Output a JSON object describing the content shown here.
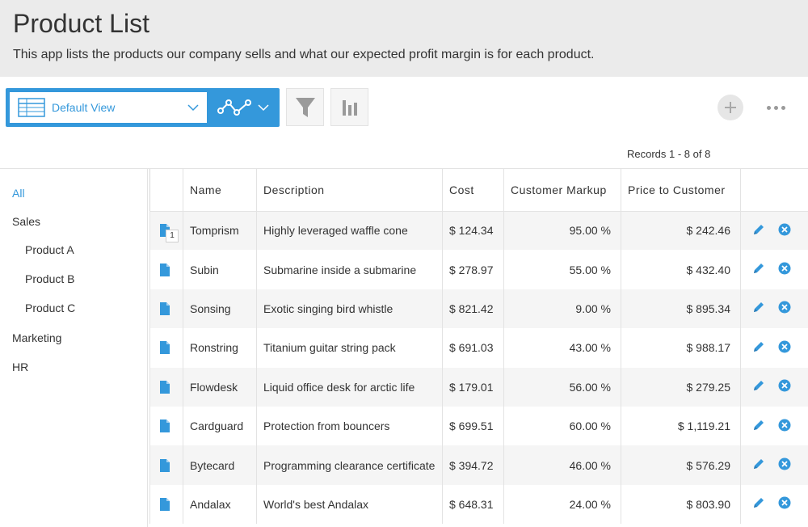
{
  "header": {
    "title": "Product List",
    "description": "This app lists the products our company sells and what our expected profit margin is for each product."
  },
  "toolbar": {
    "view_label": "Default View",
    "records": "Records 1 - 8 of 8"
  },
  "colors": {
    "accent": "#3498db",
    "header_bg": "#ebebeb",
    "stripe": "#f5f5f5"
  },
  "sidebar": {
    "items": [
      {
        "label": "All",
        "active": true
      },
      {
        "label": "Sales"
      },
      {
        "label": "Product A"
      },
      {
        "label": "Product B"
      },
      {
        "label": "Product C"
      },
      {
        "label": "Marketing"
      },
      {
        "label": "HR"
      }
    ]
  },
  "table": {
    "columns": [
      "",
      "Name",
      "Description",
      "Cost",
      "Customer Markup",
      "Price to Customer",
      ""
    ],
    "badge": "1",
    "rows": [
      {
        "name": "Tomprism",
        "description": "Highly leveraged waffle cone",
        "cost": "$ 124.34",
        "markup": "95.00 %",
        "price": "$ 242.46"
      },
      {
        "name": "Subin",
        "description": "Submarine inside a submarine",
        "cost": "$ 278.97",
        "markup": "55.00 %",
        "price": "$ 432.40"
      },
      {
        "name": "Sonsing",
        "description": "Exotic singing bird whistle",
        "cost": "$ 821.42",
        "markup": "9.00 %",
        "price": "$ 895.34"
      },
      {
        "name": "Ronstring",
        "description": "Titanium guitar string pack",
        "cost": "$ 691.03",
        "markup": "43.00 %",
        "price": "$ 988.17"
      },
      {
        "name": "Flowdesk",
        "description": "Liquid office desk for arctic life",
        "cost": "$ 179.01",
        "markup": "56.00 %",
        "price": "$ 279.25"
      },
      {
        "name": "Cardguard",
        "description": "Protection from bouncers",
        "cost": "$ 699.51",
        "markup": "60.00 %",
        "price": "$ 1,119.21"
      },
      {
        "name": "Bytecard",
        "description": "Programming clearance certificate",
        "cost": "$ 394.72",
        "markup": "46.00 %",
        "price": "$ 576.29"
      },
      {
        "name": "Andalax",
        "description": "World's best Andalax",
        "cost": "$ 648.31",
        "markup": "24.00 %",
        "price": "$ 803.90"
      }
    ]
  }
}
